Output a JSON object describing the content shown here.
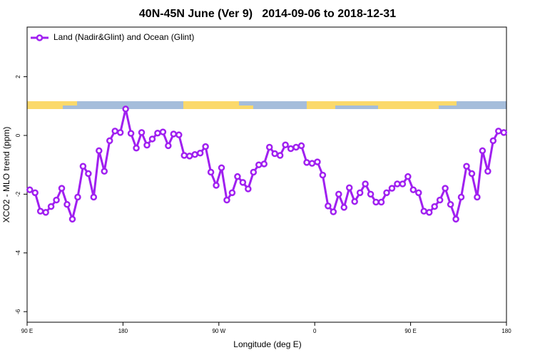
{
  "chart_data": {
    "type": "line",
    "title": "40N-45N June (Ver 9)   2014-09-06 to 2018-12-31",
    "x_label": "Longitude (deg E)",
    "y_label": "XCO2 - MLO trend (ppm)",
    "x": [
      92.5,
      97.5,
      102.5,
      107.5,
      112.5,
      117.5,
      122.5,
      127.5,
      132.5,
      137.5,
      142.5,
      147.5,
      152.5,
      157.5,
      162.5,
      167.5,
      172.5,
      177.5,
      182.5,
      187.5,
      192.5,
      197.5,
      202.5,
      207.5,
      212.5,
      217.5,
      222.5,
      227.5,
      232.5,
      237.5,
      242.5,
      247.5,
      252.5,
      257.5,
      262.5,
      267.5,
      272.5,
      277.5,
      282.5,
      287.5,
      292.5,
      297.5,
      302.5,
      307.5,
      312.5,
      317.5,
      322.5,
      327.5,
      332.5,
      337.5,
      342.5,
      347.5,
      352.5,
      357.5,
      362.5,
      367.5,
      372.5,
      377.5,
      382.5,
      387.5,
      392.5,
      397.5,
      402.5,
      407.5,
      412.5,
      417.5,
      422.5,
      427.5,
      432.5,
      437.5,
      442.5,
      447.5,
      452.5,
      457.5,
      462.5,
      467.5,
      472.5,
      477.5,
      482.5,
      487.5,
      492.5,
      497.5,
      502.5,
      507.5,
      512.5,
      517.5,
      522.5,
      527.5,
      532.5,
      537.5
    ],
    "series": [
      {
        "name": "Land (Nadir&Glint) and Ocean (Glint)",
        "color": "#a020f0",
        "values": [
          -1.85,
          -1.95,
          -2.58,
          -2.62,
          -2.42,
          -2.2,
          -1.8,
          -2.35,
          -2.85,
          -2.1,
          -1.05,
          -1.3,
          -2.1,
          -0.52,
          -1.22,
          -0.18,
          0.15,
          0.1,
          0.9,
          0.07,
          -0.43,
          0.1,
          -0.33,
          -0.12,
          0.08,
          0.12,
          -0.35,
          0.05,
          0.02,
          -0.68,
          -0.7,
          -0.65,
          -0.6,
          -0.38,
          -1.25,
          -1.7,
          -1.1,
          -2.2,
          -1.95,
          -1.4,
          -1.6,
          -1.82,
          -1.25,
          -1.0,
          -0.97,
          -0.4,
          -0.62,
          -0.68,
          -0.32,
          -0.45,
          -0.4,
          -0.35,
          -0.92,
          -0.95,
          -0.9,
          -1.35,
          -2.4,
          -2.6,
          -2.0,
          -2.45,
          -1.78,
          -2.25,
          -1.95,
          -1.65,
          -2.0,
          -2.27,
          -2.27,
          -1.95,
          -1.8,
          -1.65,
          -1.65,
          -1.4,
          -1.85,
          -1.95,
          -2.58,
          -2.62,
          -2.42,
          -2.2,
          -1.8,
          -2.35,
          -2.85,
          -2.1,
          -1.05,
          -1.3,
          -2.1,
          -0.52,
          -1.22,
          -0.18,
          0.15,
          0.1
        ]
      }
    ],
    "xlim": [
      90,
      540
    ],
    "xticks": [
      {
        "value": 90,
        "label": "90 E"
      },
      180,
      {
        "value": 270,
        "label": "90 W"
      },
      {
        "value": 360,
        "label": "0"
      },
      {
        "value": 450,
        "label": "90 E"
      },
      {
        "value": 540,
        "label": "180"
      }
    ],
    "ylim": [
      -6.36,
      3.69
    ],
    "yticks": [
      -6,
      -4,
      -2,
      0,
      2
    ],
    "legend": "top-left"
  }
}
